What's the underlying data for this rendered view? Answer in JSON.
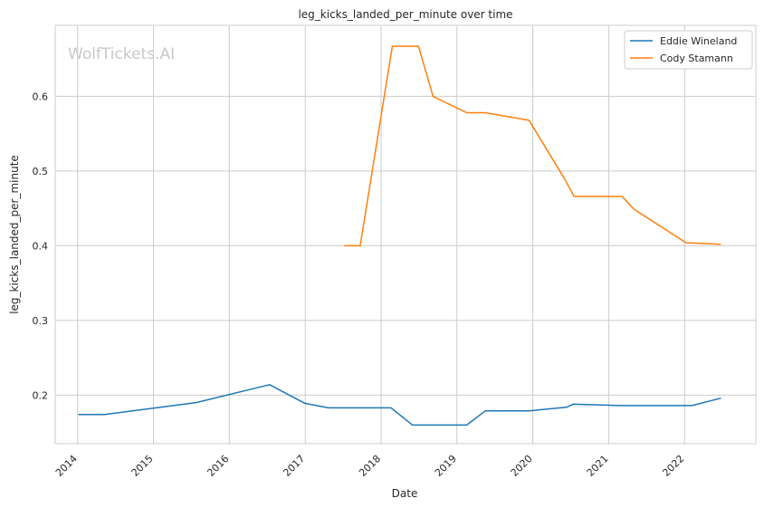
{
  "chart_data": {
    "type": "line",
    "title": "leg_kicks_landed_per_minute over time",
    "xlabel": "Date",
    "ylabel": "leg_kicks_landed_per_minute",
    "watermark": "WolfTickets.AI",
    "xlim": [
      "2013-09-15",
      "2022-12-10"
    ],
    "ylim": [
      0.135,
      0.695
    ],
    "x_ticks": [
      "2014",
      "2015",
      "2016",
      "2017",
      "2018",
      "2019",
      "2020",
      "2021",
      "2022"
    ],
    "y_ticks": [
      "0.2",
      "0.3",
      "0.4",
      "0.5",
      "0.6"
    ],
    "grid": true,
    "legend_position": "top-right",
    "series": [
      {
        "name": "Eddie Wineland",
        "color": "#1f77b4",
        "points": [
          {
            "x": "2014-01-04",
            "y": 0.174
          },
          {
            "x": "2014-05-10",
            "y": 0.174
          },
          {
            "x": "2015-07-25",
            "y": 0.19
          },
          {
            "x": "2016-07-13",
            "y": 0.214
          },
          {
            "x": "2016-12-30",
            "y": 0.189
          },
          {
            "x": "2017-04-22",
            "y": 0.183
          },
          {
            "x": "2018-02-18",
            "y": 0.183
          },
          {
            "x": "2018-06-01",
            "y": 0.16
          },
          {
            "x": "2019-02-17",
            "y": 0.16
          },
          {
            "x": "2019-05-18",
            "y": 0.179
          },
          {
            "x": "2019-12-14",
            "y": 0.179
          },
          {
            "x": "2020-06-13",
            "y": 0.184
          },
          {
            "x": "2020-07-15",
            "y": 0.188
          },
          {
            "x": "2021-02-27",
            "y": 0.186
          },
          {
            "x": "2022-02-05",
            "y": 0.186
          },
          {
            "x": "2022-06-25",
            "y": 0.196
          }
        ]
      },
      {
        "name": "Cody Stamann",
        "color": "#ff7f0e",
        "points": [
          {
            "x": "2017-07-08",
            "y": 0.4
          },
          {
            "x": "2017-09-22",
            "y": 0.4
          },
          {
            "x": "2018-02-24",
            "y": 0.667
          },
          {
            "x": "2018-06-30",
            "y": 0.667
          },
          {
            "x": "2018-09-08",
            "y": 0.6
          },
          {
            "x": "2019-02-17",
            "y": 0.578
          },
          {
            "x": "2019-05-18",
            "y": 0.578
          },
          {
            "x": "2019-12-14",
            "y": 0.568
          },
          {
            "x": "2020-05-30",
            "y": 0.491
          },
          {
            "x": "2020-07-18",
            "y": 0.466
          },
          {
            "x": "2021-03-06",
            "y": 0.466
          },
          {
            "x": "2021-05-01",
            "y": 0.449
          },
          {
            "x": "2022-01-08",
            "y": 0.404
          },
          {
            "x": "2022-06-25",
            "y": 0.402
          }
        ]
      }
    ]
  }
}
